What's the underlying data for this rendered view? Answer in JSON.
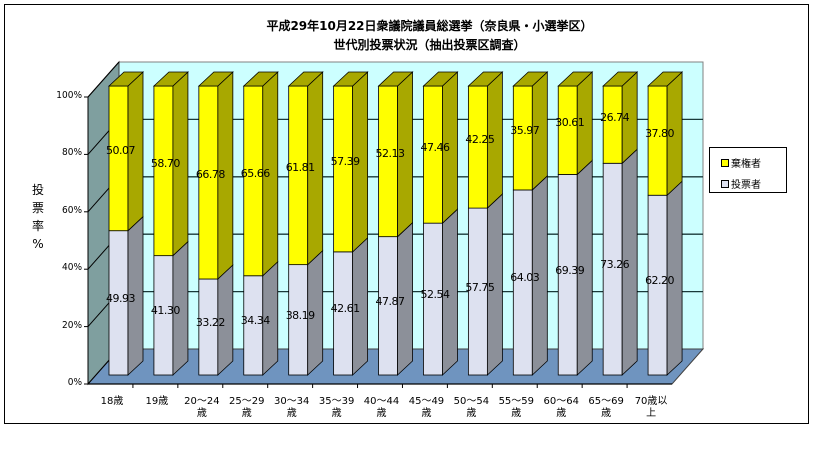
{
  "chart_data": {
    "type": "bar",
    "subtype": "3d-stacked-percent",
    "title": "平成29年10月22日衆議院議員総選挙（奈良県・小選挙区）",
    "subtitle": "世代別投票状況（抽出投票区調査）",
    "xlabel": "",
    "ylabel": "投票率%",
    "ylim": [
      0,
      100
    ],
    "yticks": [
      "0%",
      "20%",
      "40%",
      "60%",
      "80%",
      "100%"
    ],
    "grid": true,
    "legend_position": "right",
    "categories": [
      "18歳",
      "19歳",
      "20～24歳",
      "25～29歳",
      "30～34歳",
      "35～39歳",
      "40～44歳",
      "45～49歳",
      "50～54歳",
      "55～59歳",
      "60～64歳",
      "65～69歳",
      "70歳以上"
    ],
    "category_lines": [
      [
        "18歳"
      ],
      [
        "19歳"
      ],
      [
        "20～24",
        "歳"
      ],
      [
        "25～29",
        "歳"
      ],
      [
        "30～34",
        "歳"
      ],
      [
        "35～39",
        "歳"
      ],
      [
        "40～44",
        "歳"
      ],
      [
        "45～49",
        "歳"
      ],
      [
        "50～54",
        "歳"
      ],
      [
        "55～59",
        "歳"
      ],
      [
        "60～64",
        "歳"
      ],
      [
        "65～69",
        "歳"
      ],
      [
        "70歳以",
        "上"
      ]
    ],
    "series": [
      {
        "name": "投票者",
        "color": "#DDE1F0",
        "values": [
          49.93,
          41.3,
          33.22,
          34.34,
          38.19,
          42.61,
          47.87,
          52.54,
          57.75,
          64.03,
          69.39,
          73.26,
          62.2
        ]
      },
      {
        "name": "棄権者",
        "color": "#FFFF00",
        "values": [
          50.07,
          58.7,
          66.78,
          65.66,
          61.81,
          57.39,
          52.13,
          47.46,
          42.25,
          35.97,
          30.61,
          26.74,
          37.8
        ]
      }
    ],
    "value_labels": {
      "voters": [
        "49.93",
        "41.30",
        "33.22",
        "34.34",
        "38.19",
        "42.61",
        "47.87",
        "52.54",
        "57.75",
        "64.03",
        "69.39",
        "73.26",
        "62.20"
      ],
      "abstainers": [
        "50.07",
        "58.70",
        "66.78",
        "65.66",
        "61.81",
        "57.39",
        "52.13",
        "47.46",
        "42.25",
        "35.97",
        "30.61",
        "26.74",
        "37.80"
      ]
    }
  },
  "legend": {
    "items": [
      {
        "label": "棄権者",
        "color": "#FFFF00"
      },
      {
        "label": "投票者",
        "color": "#DDE1F0"
      }
    ]
  },
  "axis": {
    "ylabel_chars": [
      "投",
      "票",
      "率",
      "%"
    ]
  },
  "colors": {
    "back_wall": "#CCFFFF",
    "side_wall": "#7F9F9F",
    "floor": "#6F94BF",
    "abstain_front": "#FFFF00",
    "abstain_side": "#A8A800",
    "vote_front": "#DDE1F0",
    "vote_side": "#8C9099"
  }
}
